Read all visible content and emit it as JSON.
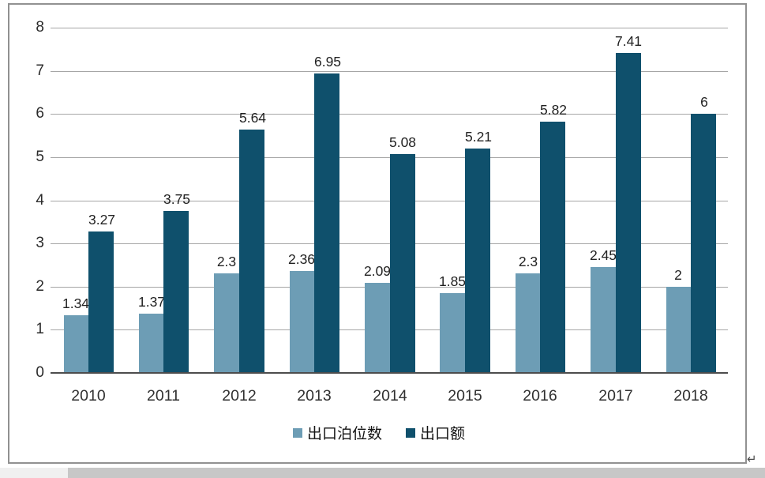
{
  "chart_data": {
    "type": "bar",
    "categories": [
      "2010",
      "2011",
      "2012",
      "2013",
      "2014",
      "2015",
      "2016",
      "2017",
      "2018"
    ],
    "series": [
      {
        "name": "出口泊位数",
        "color": "#6d9db5",
        "values": [
          1.34,
          1.37,
          2.3,
          2.36,
          2.09,
          1.85,
          2.3,
          2.45,
          2
        ],
        "labels": [
          "1.34",
          "1.37",
          "2.3",
          "2.36",
          "2.09",
          "1.85",
          "2.3",
          "2.45",
          "2"
        ]
      },
      {
        "name": "出口额",
        "color": "#0f506c",
        "values": [
          3.27,
          3.75,
          5.64,
          6.95,
          5.08,
          5.21,
          5.82,
          7.41,
          6
        ],
        "labels": [
          "3.27",
          "3.75",
          "5.64",
          "6.95",
          "5.08",
          "5.21",
          "5.82",
          "7.41",
          "6"
        ]
      }
    ],
    "title": "",
    "xlabel": "",
    "ylabel": "",
    "ylim": [
      0,
      8
    ],
    "yticks": [
      0,
      1,
      2,
      3,
      4,
      5,
      6,
      7,
      8
    ],
    "grid": true,
    "gridline_color": "#a6a6a6",
    "axis_color": "#4d4d4d",
    "legend_position": "bottom",
    "data_label_color": "#222222"
  },
  "page": {
    "paragraph_mark": "↵"
  }
}
